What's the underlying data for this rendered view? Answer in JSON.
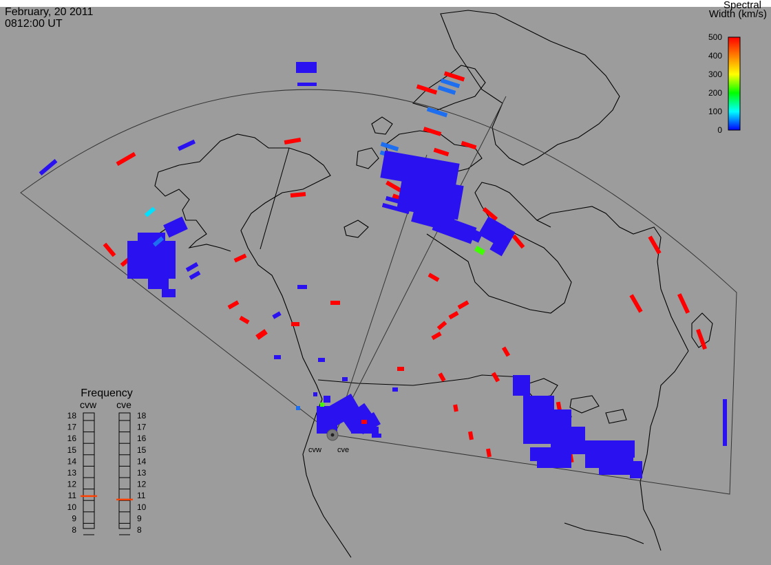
{
  "header": {
    "date": "February, 20 2011",
    "time": "0812:00 UT"
  },
  "colorbar": {
    "title_line1": "Spectral",
    "title_line2": "Width (km/s)",
    "ticks": [
      "500",
      "400",
      "300",
      "200",
      "100",
      "0"
    ],
    "min": 0,
    "max": 500,
    "colors": [
      "#ff0000",
      "#ff8000",
      "#ffff00",
      "#00ff00",
      "#00ffff",
      "#0000ff"
    ]
  },
  "radars": {
    "west": "cvw",
    "east": "cve"
  },
  "frequency": {
    "title": "Frequency",
    "west_label": "cvw",
    "east_label": "cve",
    "ticks": [
      "18",
      "17",
      "16",
      "15",
      "14",
      "13",
      "12",
      "11",
      "10",
      "9",
      "8"
    ],
    "min": 8,
    "max": 18,
    "cvw_mhz": 10.9,
    "cve_mhz": 10.6
  },
  "colors": {
    "background": "#9c9c9c",
    "low_width": "#2a12f0",
    "high_width": "#ff0000",
    "mid_width": "#1e6ef0"
  }
}
